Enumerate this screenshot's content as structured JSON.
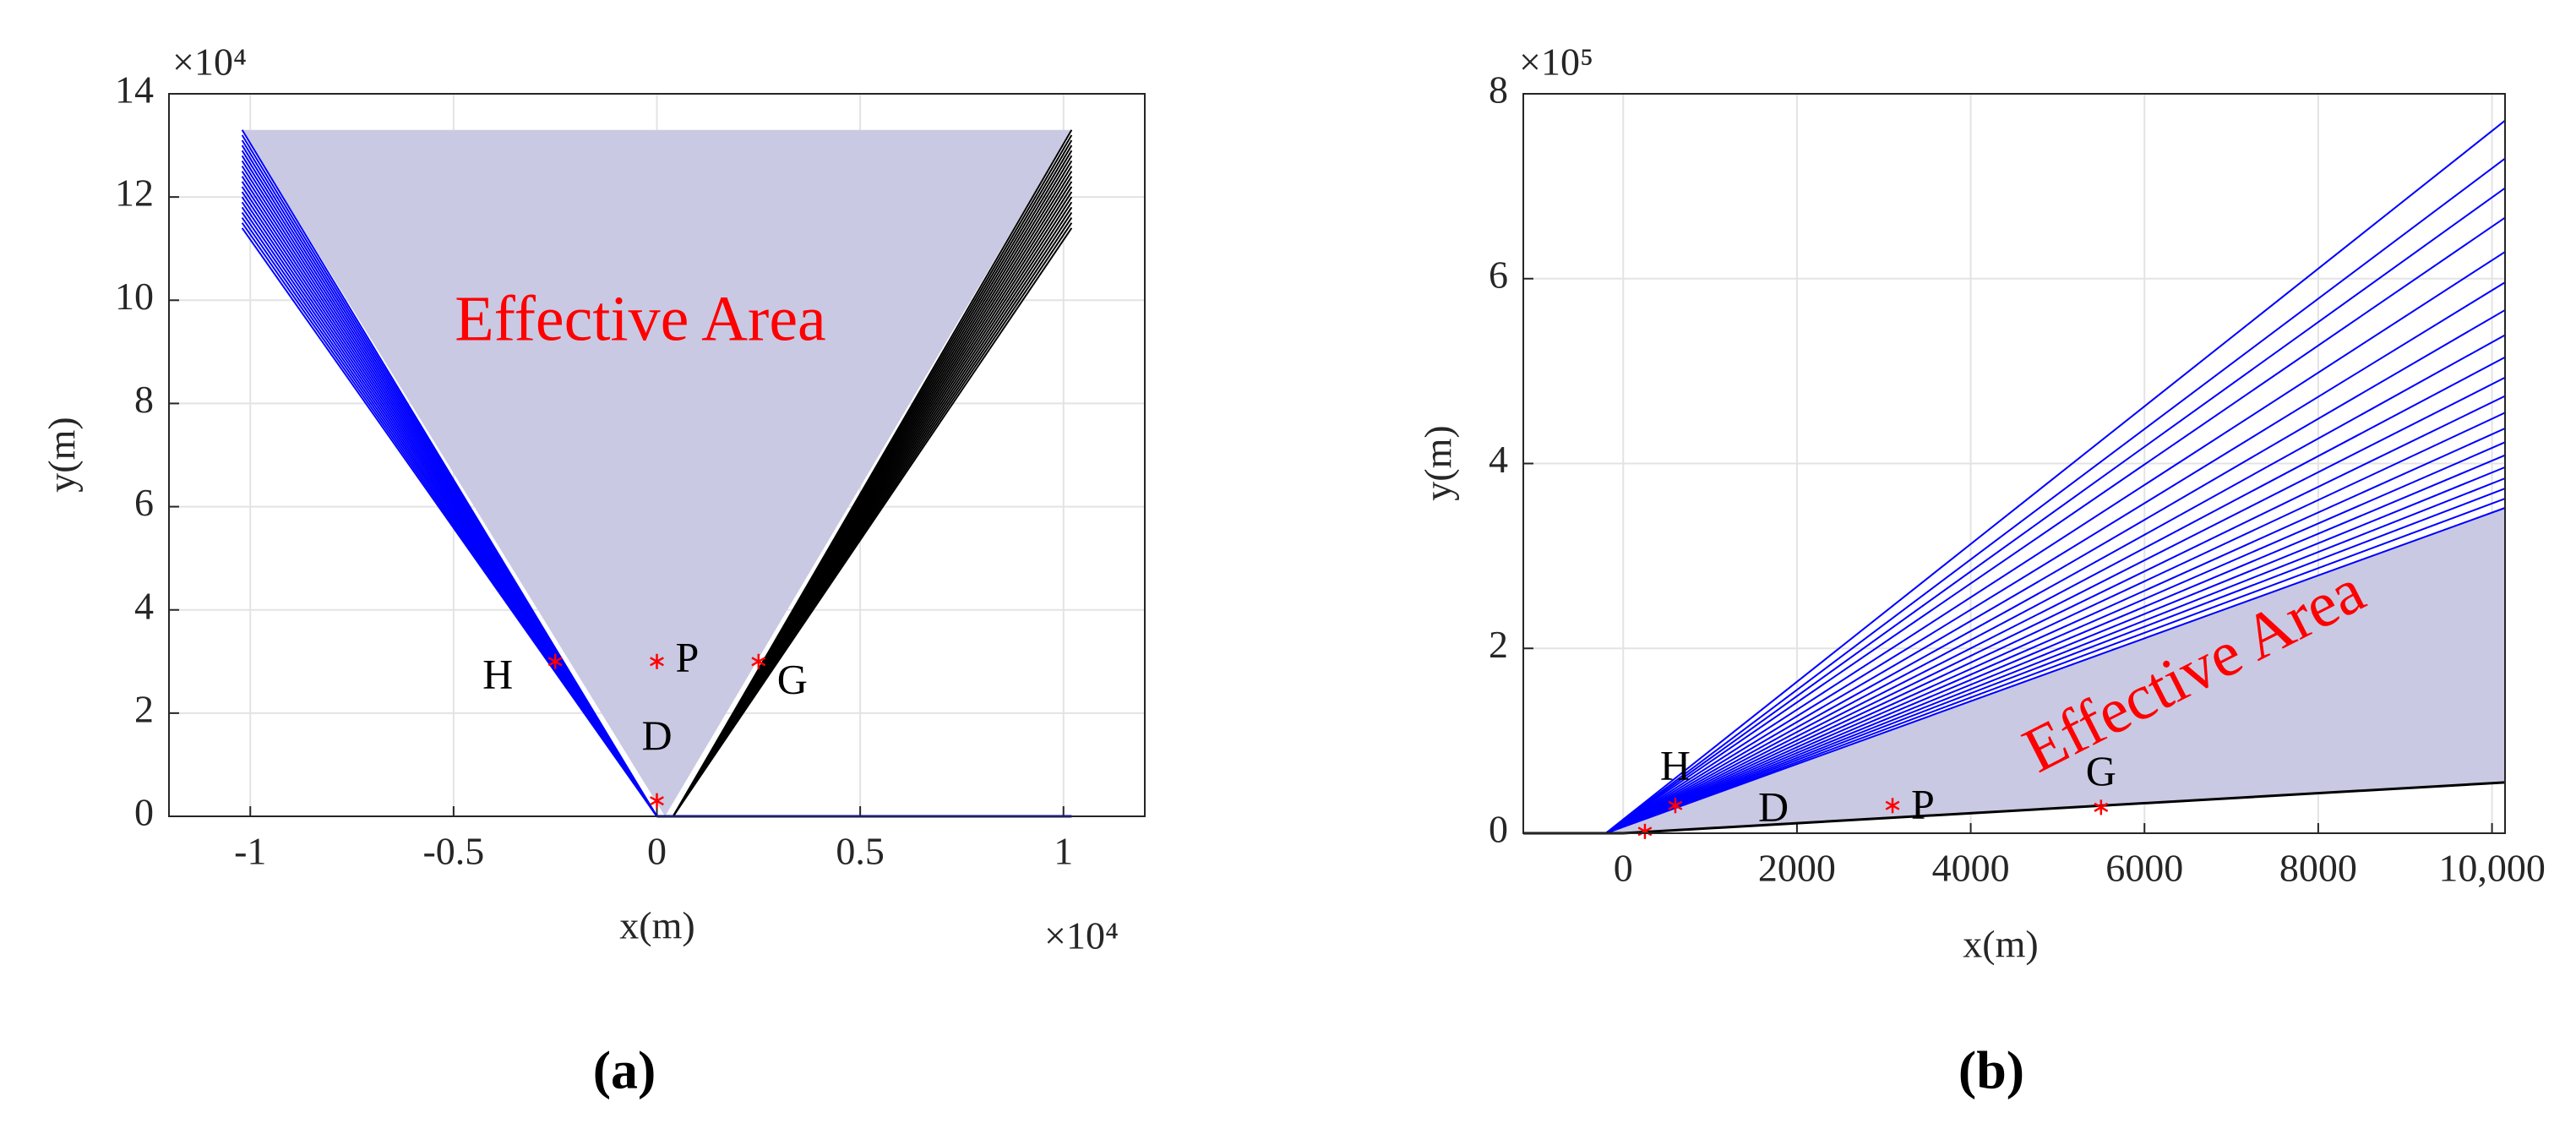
{
  "chart_data": [
    {
      "type": "fan",
      "caption": "(a)",
      "xlabel": "x(m)",
      "ylabel": "y(m)",
      "x_multiplier": "×10⁴",
      "y_multiplier": "×10⁴",
      "xlim": [
        -1.2,
        1.2
      ],
      "xticks": [
        -1,
        -0.5,
        0,
        0.5,
        1
      ],
      "ylim": [
        0,
        14
      ],
      "yticks": [
        0,
        2,
        4,
        6,
        8,
        10,
        12,
        14
      ],
      "grid": true,
      "area": {
        "label": "Effective Area",
        "label_color": "#ff0000",
        "color": "#c9c9e3",
        "x": [
          -1.02,
          1.02,
          0.02
        ],
        "y": [
          13.3,
          13.3,
          0
        ]
      },
      "fans": [
        {
          "color": "#0000ff",
          "origin_x": 0,
          "origin_y": 0,
          "end_x": -1.02,
          "end_y": [
            11.4,
            11.5,
            11.6,
            11.7,
            11.8,
            11.9,
            12.0,
            12.1,
            12.2,
            12.3,
            12.4,
            12.5,
            12.6,
            12.7,
            12.8,
            12.9,
            13.0,
            13.1,
            13.2,
            13.3
          ]
        },
        {
          "color": "#000000",
          "origin_x": 0.04,
          "origin_y": 0,
          "end_x": 1.02,
          "end_y": [
            11.4,
            11.5,
            11.6,
            11.7,
            11.8,
            11.9,
            12.0,
            12.1,
            12.2,
            12.3,
            12.4,
            12.5,
            12.6,
            12.7,
            12.8,
            12.9,
            13.0,
            13.1,
            13.2,
            13.3
          ]
        }
      ],
      "lines": [
        {
          "color": "#0000ff",
          "x": [
            0,
            1.02
          ],
          "y": [
            0,
            0
          ]
        }
      ],
      "points": [
        {
          "label": "H",
          "x": -0.25,
          "y": 3,
          "color": "#ff0000"
        },
        {
          "label": "P",
          "x": 0,
          "y": 3,
          "color": "#ff0000"
        },
        {
          "label": "G",
          "x": 0.25,
          "y": 3,
          "color": "#ff0000"
        },
        {
          "label": "D",
          "x": 0,
          "y": 0.3,
          "color": "#ff0000"
        }
      ]
    },
    {
      "type": "fan",
      "caption": "(b)",
      "xlabel": "x(m)",
      "ylabel": "y(m)",
      "y_multiplier": "×10⁵",
      "xlim": [
        -1150,
        10150
      ],
      "xticks": [
        0,
        2000,
        4000,
        6000,
        8000,
        {
          "value": 10000,
          "label": "10,000"
        }
      ],
      "ylim": [
        0,
        8
      ],
      "yticks": [
        0,
        2,
        4,
        6,
        8
      ],
      "grid": true,
      "area": {
        "label": "Effective Area",
        "label_color": "#ff0000",
        "color": "#c9c9e3",
        "x": [
          -200,
          10150,
          10150
        ],
        "y": [
          0,
          0.55,
          3.52
        ]
      },
      "fans": [
        {
          "color": "#0000ff",
          "origin_x": -200,
          "origin_y": 0,
          "end_x": 10150,
          "end_y": [
            3.52,
            3.62,
            3.73,
            3.84,
            3.96,
            4.09,
            4.23,
            4.38,
            4.55,
            4.73,
            4.93,
            5.15,
            5.39,
            5.66,
            5.96,
            6.29,
            6.66,
            6.98,
            7.3,
            7.71
          ]
        }
      ],
      "lines": [
        {
          "color": "#000000",
          "x": [
            -1150,
            0,
            10150
          ],
          "y": [
            0,
            0,
            0.55
          ]
        }
      ],
      "points": [
        {
          "label": "H",
          "x": 600,
          "y": 0.3,
          "color": "#ff0000"
        },
        {
          "label": "D",
          "x": 250,
          "y": 0.02,
          "color": "#ff0000"
        },
        {
          "label": "P",
          "x": 3100,
          "y": 0.3,
          "color": "#ff0000"
        },
        {
          "label": "G",
          "x": 5500,
          "y": 0.28,
          "color": "#ff0000"
        }
      ]
    }
  ]
}
